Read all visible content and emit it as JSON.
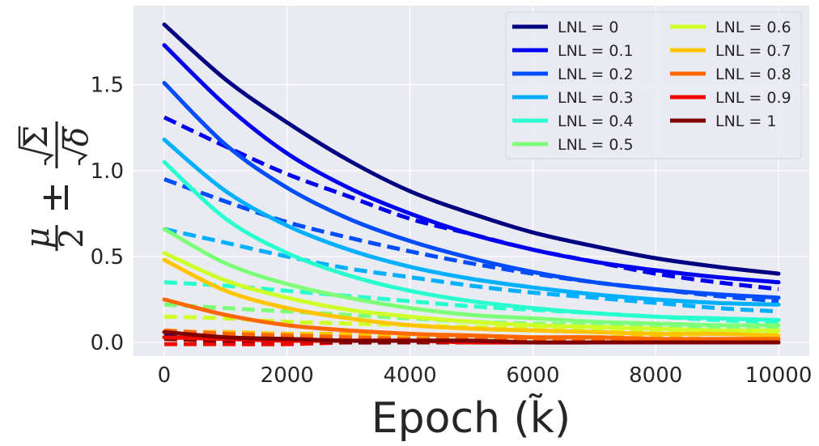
{
  "chart_data": {
    "type": "line",
    "xlabel": "Epoch (k̃)",
    "ylabel": "μ/2 ± √Σ/√δ",
    "xlim": [
      -500,
      10500
    ],
    "ylim": [
      -0.08,
      1.96
    ],
    "xticks": [
      0,
      2000,
      4000,
      6000,
      8000,
      10000
    ],
    "xtick_labels": [
      "0",
      "2000",
      "4000",
      "6000",
      "8000",
      "10000"
    ],
    "yticks": [
      0.0,
      0.5,
      1.0,
      1.5
    ],
    "ytick_labels": [
      "0.0",
      "0.5",
      "1.0",
      "1.5"
    ],
    "grid": true,
    "legend_position": "top-right",
    "legend_columns": 2,
    "x": [
      0,
      1000,
      2000,
      3000,
      4000,
      5000,
      6000,
      7000,
      8000,
      9000,
      10000
    ],
    "series": [
      {
        "name": "LNL = 0",
        "color": "#000080",
        "upper": [
          1.85,
          1.53,
          1.28,
          1.06,
          0.88,
          0.75,
          0.64,
          0.56,
          0.49,
          0.44,
          0.4
        ],
        "lower": [
          0.05,
          0.04,
          0.03,
          0.02,
          0.02,
          0.01,
          0.01,
          0.01,
          0.01,
          0.01,
          0.01
        ]
      },
      {
        "name": "LNL = 0.1",
        "color": "#0000F1",
        "upper": [
          1.73,
          1.38,
          1.1,
          0.9,
          0.75,
          0.63,
          0.54,
          0.47,
          0.42,
          0.38,
          0.35
        ],
        "lower": [
          1.31,
          1.14,
          0.98,
          0.85,
          0.72,
          0.63,
          0.54,
          0.47,
          0.4,
          0.35,
          0.31
        ]
      },
      {
        "name": "LNL = 0.2",
        "color": "#004CFF",
        "upper": [
          1.51,
          1.15,
          0.9,
          0.72,
          0.59,
          0.49,
          0.41,
          0.35,
          0.31,
          0.28,
          0.26
        ],
        "lower": [
          0.95,
          0.82,
          0.7,
          0.61,
          0.53,
          0.46,
          0.4,
          0.35,
          0.31,
          0.27,
          0.24
        ]
      },
      {
        "name": "LNL = 0.3",
        "color": "#00B0FF",
        "upper": [
          1.18,
          0.88,
          0.68,
          0.54,
          0.44,
          0.37,
          0.32,
          0.28,
          0.25,
          0.23,
          0.22
        ],
        "lower": [
          0.66,
          0.58,
          0.5,
          0.43,
          0.38,
          0.33,
          0.29,
          0.26,
          0.23,
          0.2,
          0.18
        ]
      },
      {
        "name": "LNL = 0.4",
        "color": "#29FFCE",
        "upper": [
          1.05,
          0.72,
          0.52,
          0.39,
          0.3,
          0.24,
          0.2,
          0.17,
          0.15,
          0.14,
          0.13
        ],
        "lower": [
          0.35,
          0.33,
          0.3,
          0.27,
          0.24,
          0.21,
          0.19,
          0.17,
          0.15,
          0.13,
          0.12
        ]
      },
      {
        "name": "LNL = 0.5",
        "color": "#7DFF7A",
        "upper": [
          0.66,
          0.46,
          0.34,
          0.26,
          0.2,
          0.16,
          0.14,
          0.12,
          0.11,
          0.1,
          0.1
        ],
        "lower": [
          0.22,
          0.2,
          0.18,
          0.16,
          0.14,
          0.12,
          0.11,
          0.1,
          0.09,
          0.08,
          0.08
        ]
      },
      {
        "name": "LNL = 0.6",
        "color": "#CEFF29",
        "upper": [
          0.52,
          0.36,
          0.26,
          0.19,
          0.15,
          0.12,
          0.1,
          0.09,
          0.08,
          0.07,
          0.07
        ],
        "lower": [
          0.15,
          0.14,
          0.12,
          0.11,
          0.1,
          0.09,
          0.08,
          0.07,
          0.06,
          0.05,
          0.05
        ]
      },
      {
        "name": "LNL = 0.7",
        "color": "#FFC400",
        "upper": [
          0.48,
          0.3,
          0.2,
          0.14,
          0.1,
          0.08,
          0.07,
          0.06,
          0.05,
          0.05,
          0.04
        ],
        "lower": [
          0.06,
          0.06,
          0.05,
          0.05,
          0.04,
          0.04,
          0.03,
          0.03,
          0.03,
          0.02,
          0.02
        ]
      },
      {
        "name": "LNL = 0.8",
        "color": "#FF6800",
        "upper": [
          0.25,
          0.16,
          0.1,
          0.07,
          0.05,
          0.04,
          0.03,
          0.03,
          0.02,
          0.02,
          0.02
        ],
        "lower": [
          0.07,
          0.05,
          0.04,
          0.03,
          0.02,
          0.02,
          0.01,
          0.01,
          0.01,
          0.01,
          0.01
        ]
      },
      {
        "name": "LNL = 0.9",
        "color": "#F10800",
        "upper": [
          0.03,
          0.02,
          0.01,
          0.01,
          0.01,
          0.0,
          0.0,
          0.0,
          0.0,
          0.0,
          0.0
        ],
        "lower": [
          -0.01,
          -0.01,
          -0.01,
          0.0,
          0.0,
          0.0,
          0.0,
          0.0,
          0.0,
          0.0,
          0.0
        ]
      },
      {
        "name": "LNL = 1",
        "color": "#800000",
        "upper": [
          0.06,
          0.03,
          0.02,
          0.01,
          0.01,
          0.01,
          0.0,
          0.0,
          0.0,
          0.0,
          0.0
        ],
        "lower": [
          0.02,
          0.01,
          0.01,
          0.0,
          0.0,
          0.0,
          0.0,
          0.0,
          0.0,
          0.0,
          0.0
        ]
      }
    ]
  }
}
